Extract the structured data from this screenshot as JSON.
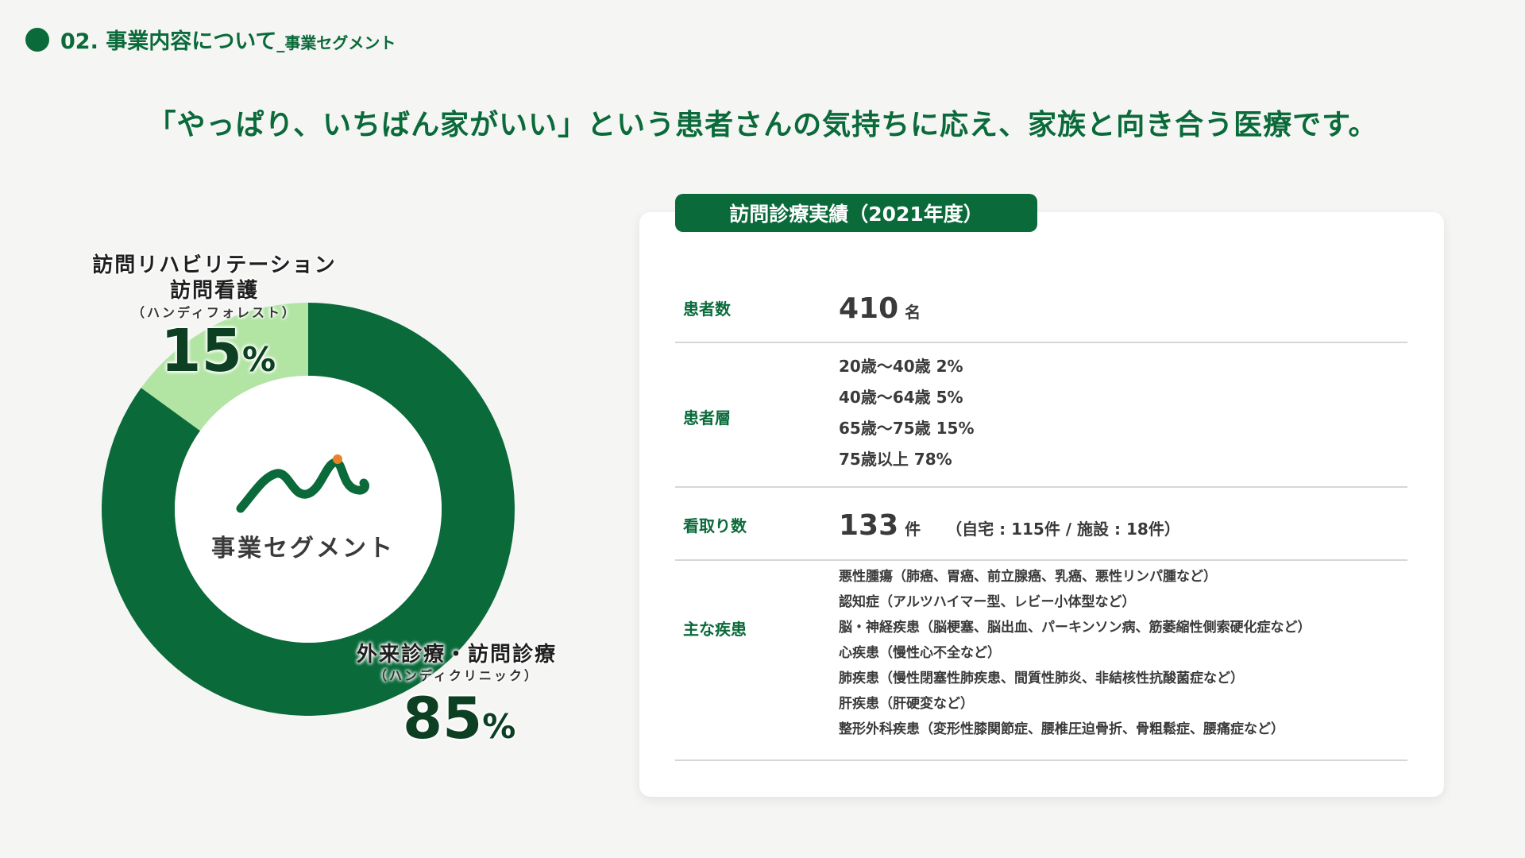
{
  "header": {
    "main": "02. 事業内容について",
    "sub": "_事業セグメント"
  },
  "tagline": "「やっぱり、いちばん家がいい」という患者さんの気持ちに応え、家族と向き合う医療です。",
  "colors": {
    "dark_green": "#0a6a3a",
    "light_green": "#b2e5a4",
    "logo_dot": "#e8822a"
  },
  "chart_data": {
    "type": "pie",
    "variant": "donut",
    "center_label": "事業セグメント",
    "slices": [
      {
        "label_line1": "訪問リハビリテーション",
        "label_line2": "訪問看護",
        "sub": "（ハンディフォレスト）",
        "value": 15,
        "pct": "15",
        "color": "#b2e5a4"
      },
      {
        "label_line1": "外来診療・訪問診療",
        "sub": "（ハンディクリニック）",
        "value": 85,
        "pct": "85",
        "color": "#0a6a3a"
      }
    ],
    "pct_sign": "%"
  },
  "logo_icon": "brand-wave-logo",
  "panel": {
    "title": "訪問診療実績（2021年度）",
    "patients": {
      "label": "患者数",
      "value": "410",
      "unit": "名"
    },
    "age": {
      "label": "患者層",
      "lines": [
        "20歳〜40歳 2%",
        "40歳〜64歳 5%",
        "65歳〜75歳 15%",
        "75歳以上 78%"
      ]
    },
    "mitori": {
      "label": "看取り数",
      "value": "133",
      "unit": "件",
      "note": "（自宅 : 115件 / 施設 : 18件）"
    },
    "diseases": {
      "label": "主な疾患",
      "lines": [
        "悪性腫瘍（肺癌、胃癌、前立腺癌、乳癌、悪性リンパ腫など）",
        "認知症（アルツハイマー型、レビー小体型など）",
        "脳・神経疾患（脳梗塞、脳出血、パーキンソン病、筋萎縮性側索硬化症など）",
        "心疾患（慢性心不全など）",
        "肺疾患（慢性閉塞性肺疾患、間質性肺炎、非結核性抗酸菌症など）",
        "肝疾患（肝硬変など）",
        "整形外科疾患（変形性膝関節症、腰椎圧迫骨折、骨粗鬆症、腰痛症など）"
      ]
    }
  }
}
